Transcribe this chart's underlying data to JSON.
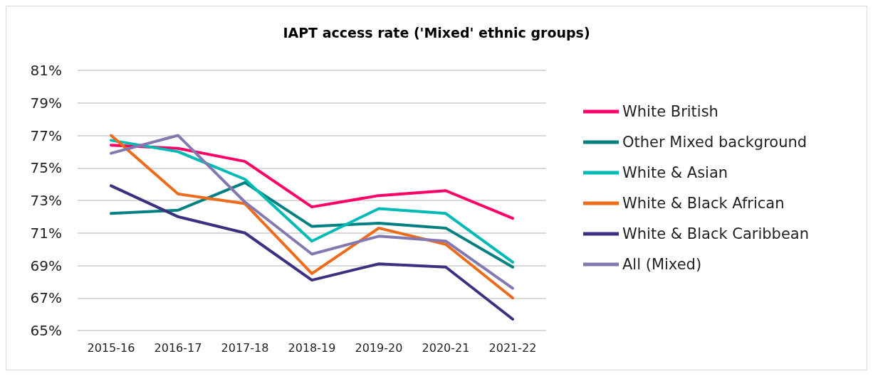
{
  "chart_data": {
    "type": "line",
    "title": "IAPT access rate ('Mixed' ethnic groups)",
    "categories": [
      "2015-16",
      "2016-17",
      "2017-18",
      "2018-19",
      "2019-20",
      "2020-21",
      "2021-22"
    ],
    "series": [
      {
        "name": "White British",
        "color": "#ff0066",
        "values": [
          76.4,
          76.2,
          75.4,
          72.6,
          73.3,
          73.6,
          71.9
        ]
      },
      {
        "name": "Other Mixed background",
        "color": "#008080",
        "values": [
          72.2,
          72.4,
          74.1,
          71.4,
          71.6,
          71.3,
          68.9
        ]
      },
      {
        "name": "White & Asian",
        "color": "#00bab6",
        "values": [
          76.7,
          76.0,
          74.3,
          70.5,
          72.5,
          72.2,
          69.2
        ]
      },
      {
        "name": "White & Black African",
        "color": "#ec6b1c",
        "values": [
          77.0,
          73.4,
          72.8,
          68.5,
          71.3,
          70.3,
          67.0
        ]
      },
      {
        "name": "White & Black Caribbean",
        "color": "#3c3180",
        "values": [
          73.9,
          72.0,
          71.0,
          68.1,
          69.1,
          68.9,
          65.7
        ]
      },
      {
        "name": "All (Mixed)",
        "color": "#8379b0",
        "values": [
          75.9,
          77.0,
          72.9,
          69.7,
          70.8,
          70.5,
          67.6
        ]
      }
    ],
    "ylim": [
      65,
      81
    ],
    "yticks": [
      {
        "value": 65,
        "label": "65%"
      },
      {
        "value": 67,
        "label": "67%"
      },
      {
        "value": 69,
        "label": "69%"
      },
      {
        "value": 71,
        "label": "71%"
      },
      {
        "value": 73,
        "label": "73%"
      },
      {
        "value": 75,
        "label": "75%"
      },
      {
        "value": 77,
        "label": "77%"
      },
      {
        "value": 79,
        "label": "79%"
      },
      {
        "value": 81,
        "label": "81%"
      }
    ],
    "grid": "y",
    "legend": "right",
    "marker": "none",
    "line_style": "solid"
  }
}
